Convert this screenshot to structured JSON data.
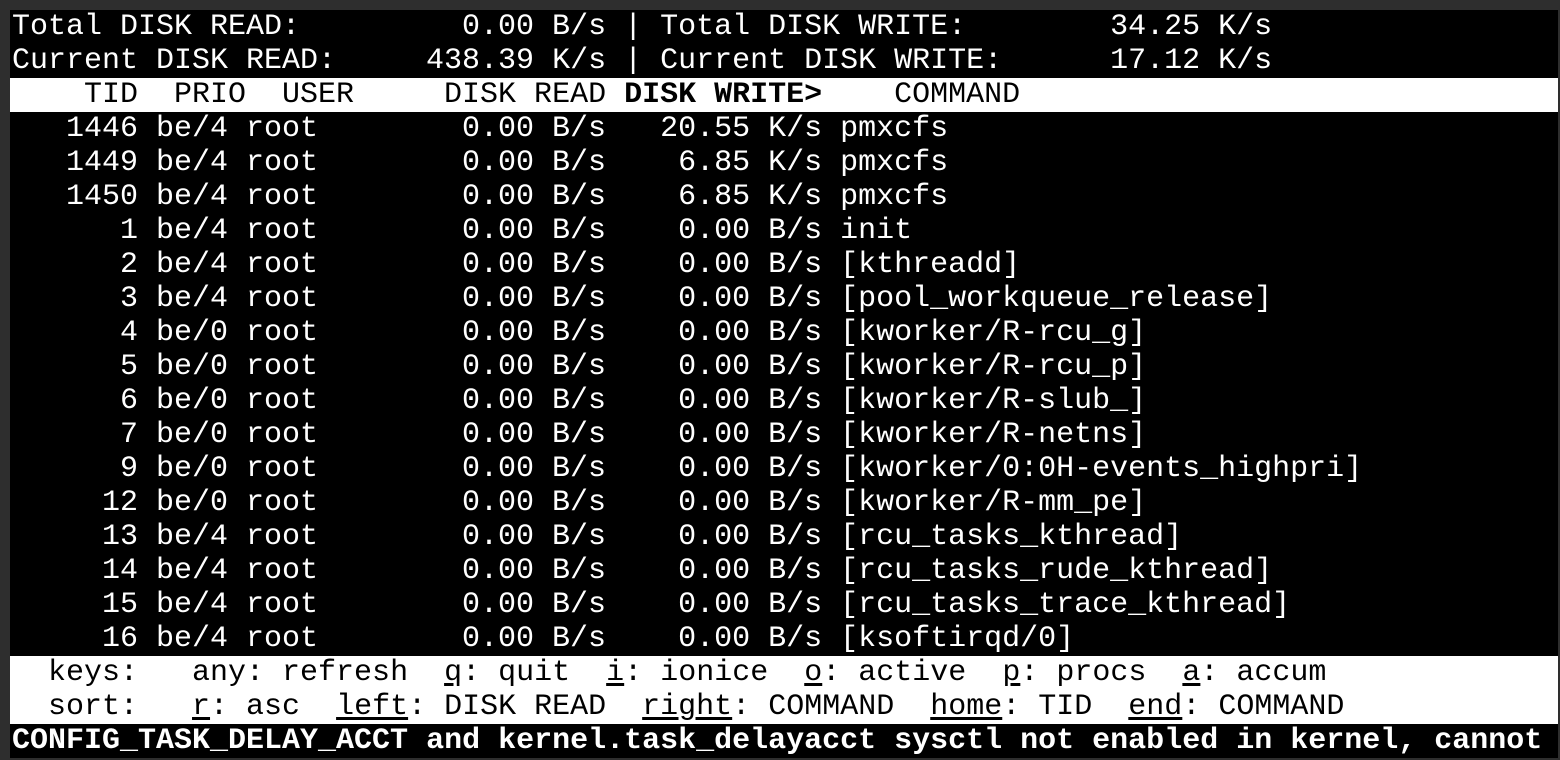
{
  "summary": {
    "total_read_label": "Total DISK READ:",
    "total_read_value": "0.00 B/s",
    "total_write_label": "Total DISK WRITE:",
    "total_write_value": "34.25 K/s",
    "current_read_label": "Current DISK READ:",
    "current_read_value": "438.39 K/s",
    "current_write_label": "Current DISK WRITE:",
    "current_write_value": "17.12 K/s",
    "separator": "|"
  },
  "columns": {
    "tid": "TID",
    "prio": "PRIO",
    "user": "USER",
    "disk_read": "DISK READ",
    "disk_write": "DISK WRITE>",
    "command": "COMMAND",
    "sorted_by": "disk_write"
  },
  "rows": [
    {
      "tid": "1446",
      "prio": "be/4",
      "user": "root",
      "read": "0.00 B/s",
      "write": "20.55 K/s",
      "command": "pmxcfs"
    },
    {
      "tid": "1449",
      "prio": "be/4",
      "user": "root",
      "read": "0.00 B/s",
      "write": "6.85 K/s",
      "command": "pmxcfs"
    },
    {
      "tid": "1450",
      "prio": "be/4",
      "user": "root",
      "read": "0.00 B/s",
      "write": "6.85 K/s",
      "command": "pmxcfs"
    },
    {
      "tid": "1",
      "prio": "be/4",
      "user": "root",
      "read": "0.00 B/s",
      "write": "0.00 B/s",
      "command": "init"
    },
    {
      "tid": "2",
      "prio": "be/4",
      "user": "root",
      "read": "0.00 B/s",
      "write": "0.00 B/s",
      "command": "[kthreadd]"
    },
    {
      "tid": "3",
      "prio": "be/4",
      "user": "root",
      "read": "0.00 B/s",
      "write": "0.00 B/s",
      "command": "[pool_workqueue_release]"
    },
    {
      "tid": "4",
      "prio": "be/0",
      "user": "root",
      "read": "0.00 B/s",
      "write": "0.00 B/s",
      "command": "[kworker/R-rcu_g]"
    },
    {
      "tid": "5",
      "prio": "be/0",
      "user": "root",
      "read": "0.00 B/s",
      "write": "0.00 B/s",
      "command": "[kworker/R-rcu_p]"
    },
    {
      "tid": "6",
      "prio": "be/0",
      "user": "root",
      "read": "0.00 B/s",
      "write": "0.00 B/s",
      "command": "[kworker/R-slub_]"
    },
    {
      "tid": "7",
      "prio": "be/0",
      "user": "root",
      "read": "0.00 B/s",
      "write": "0.00 B/s",
      "command": "[kworker/R-netns]"
    },
    {
      "tid": "9",
      "prio": "be/0",
      "user": "root",
      "read": "0.00 B/s",
      "write": "0.00 B/s",
      "command": "[kworker/0:0H-events_highpri]"
    },
    {
      "tid": "12",
      "prio": "be/0",
      "user": "root",
      "read": "0.00 B/s",
      "write": "0.00 B/s",
      "command": "[kworker/R-mm_pe]"
    },
    {
      "tid": "13",
      "prio": "be/4",
      "user": "root",
      "read": "0.00 B/s",
      "write": "0.00 B/s",
      "command": "[rcu_tasks_kthread]"
    },
    {
      "tid": "14",
      "prio": "be/4",
      "user": "root",
      "read": "0.00 B/s",
      "write": "0.00 B/s",
      "command": "[rcu_tasks_rude_kthread]"
    },
    {
      "tid": "15",
      "prio": "be/4",
      "user": "root",
      "read": "0.00 B/s",
      "write": "0.00 B/s",
      "command": "[rcu_tasks_trace_kthread]"
    },
    {
      "tid": "16",
      "prio": "be/4",
      "user": "root",
      "read": "0.00 B/s",
      "write": "0.00 B/s",
      "command": "[ksoftirqd/0]"
    }
  ],
  "keys": {
    "label": "keys:",
    "items": [
      {
        "key": "any",
        "desc": "refresh",
        "underline": false
      },
      {
        "key": "q",
        "desc": "quit",
        "underline": true
      },
      {
        "key": "i",
        "desc": "ionice",
        "underline": true
      },
      {
        "key": "o",
        "desc": "active",
        "underline": true
      },
      {
        "key": "p",
        "desc": "procs",
        "underline": true
      },
      {
        "key": "a",
        "desc": "accum",
        "underline": true
      }
    ]
  },
  "sort": {
    "label": "sort:",
    "items": [
      {
        "key": "r",
        "desc": "asc",
        "underline": true
      },
      {
        "key": "left",
        "desc": "DISK READ",
        "underline": true
      },
      {
        "key": "right",
        "desc": "COMMAND",
        "underline": true
      },
      {
        "key": "home",
        "desc": "TID",
        "underline": true
      },
      {
        "key": "end",
        "desc": "COMMAND",
        "underline": true
      }
    ]
  },
  "status_message": "CONFIG_TASK_DELAY_ACCT and kernel.task_delayacct sysctl not enabled in kernel, cannot"
}
